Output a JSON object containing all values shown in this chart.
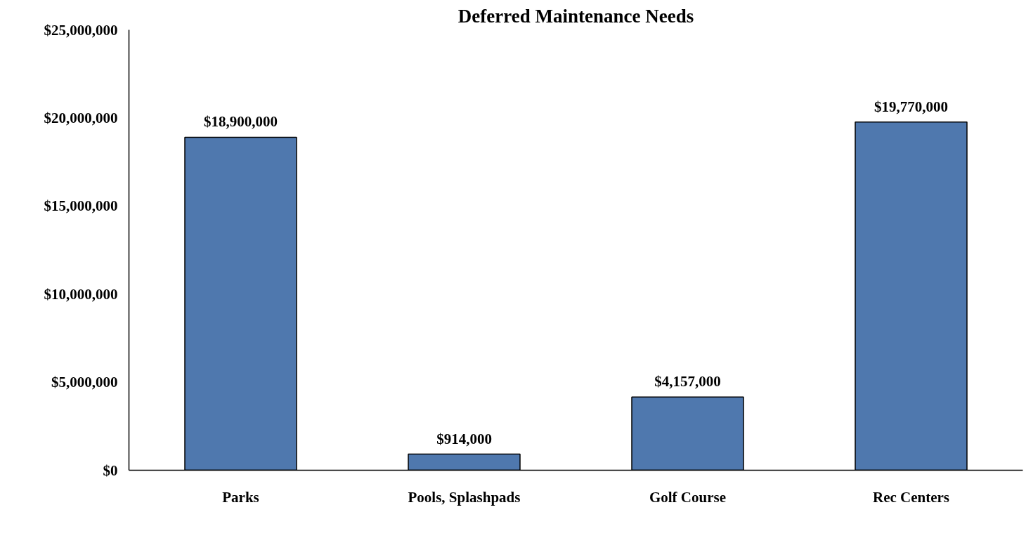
{
  "chart_data": {
    "type": "bar",
    "title": "Deferred Maintenance Needs",
    "categories": [
      "Parks",
      "Pools, Splashpads",
      "Golf Course",
      "Rec Centers"
    ],
    "values": [
      18900000,
      914000,
      4157000,
      19770000
    ],
    "value_labels": [
      "$18,900,000",
      "$914,000",
      "$4,157,000",
      "$19,770,000"
    ],
    "color": "#4f78ae",
    "ylim": [
      0,
      25000000
    ],
    "yticks": [
      {
        "value": 0,
        "label": "$0"
      },
      {
        "value": 5000000,
        "label": "$5,000,000"
      },
      {
        "value": 10000000,
        "label": "$10,000,000"
      },
      {
        "value": 15000000,
        "label": "$15,000,000"
      },
      {
        "value": 20000000,
        "label": "$20,000,000"
      },
      {
        "value": 25000000,
        "label": "$25,000,000"
      }
    ]
  }
}
